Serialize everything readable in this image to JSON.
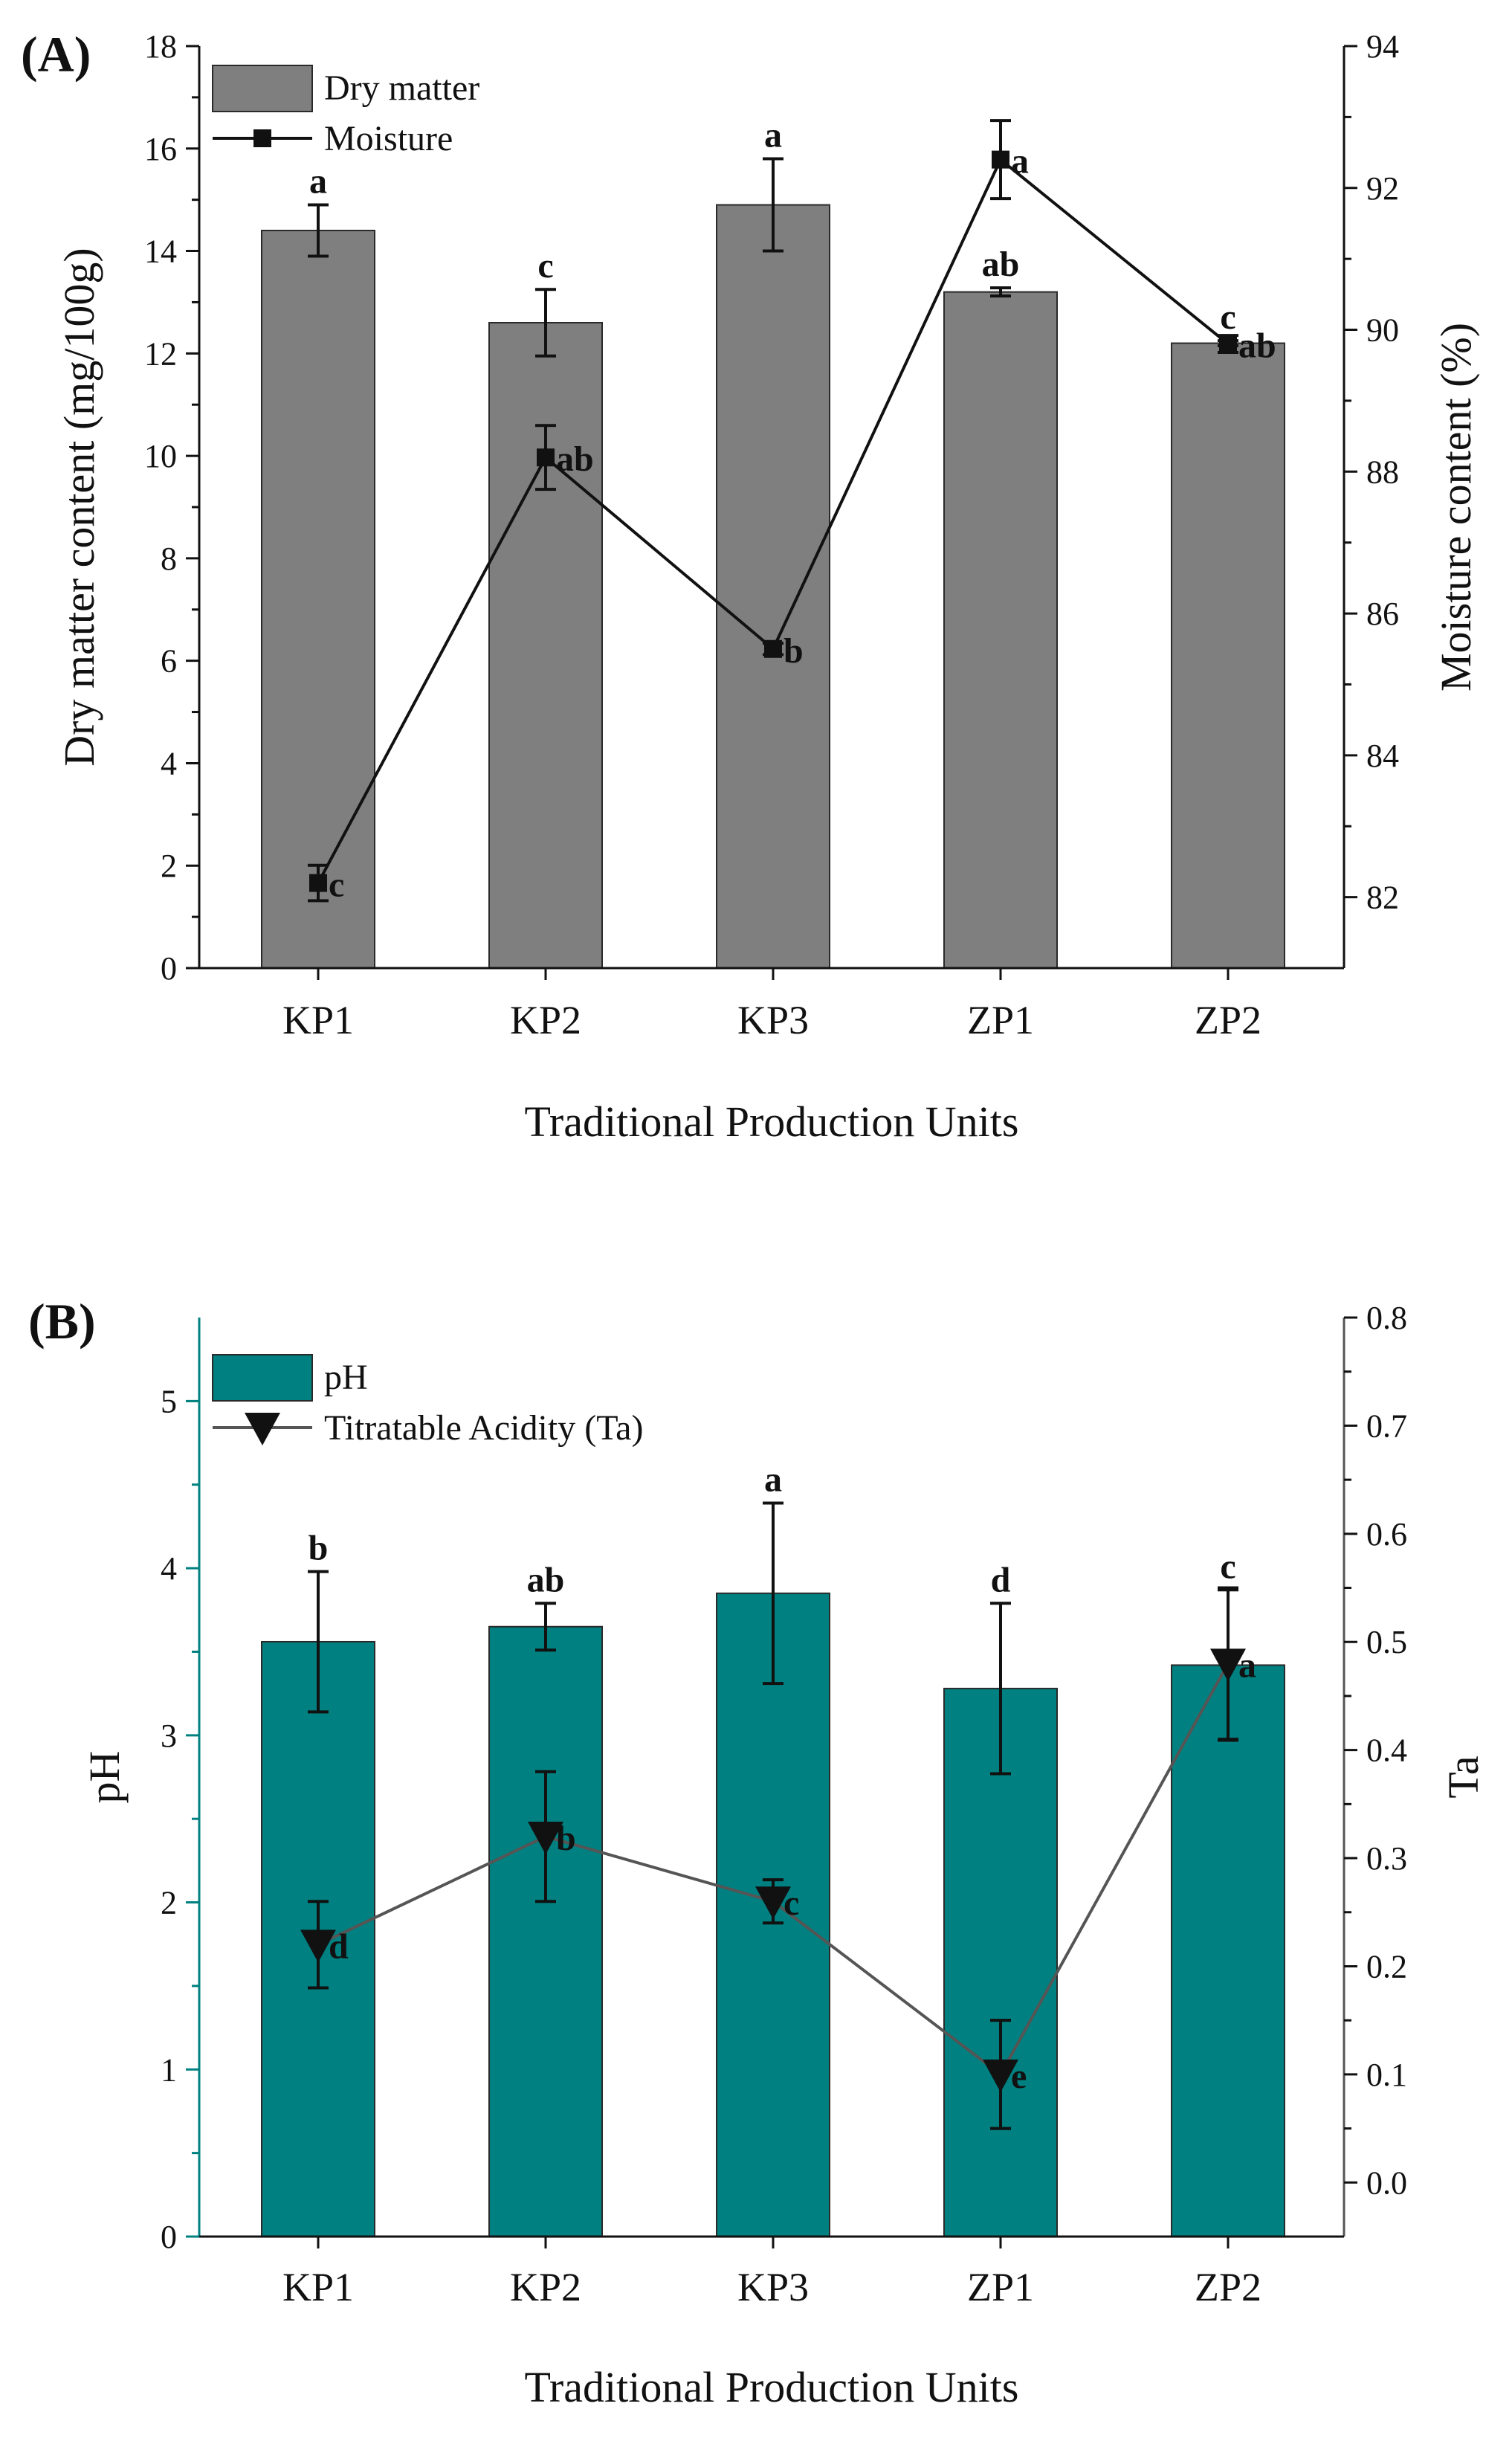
{
  "chart_data": [
    {
      "panel": "(A)",
      "type": "bar+line",
      "categories": [
        "KP1",
        "KP2",
        "KP3",
        "ZP1",
        "ZP2"
      ],
      "xlabel": "Traditional Production Units",
      "ylabel_left": "Dry matter content (mg/100g)",
      "ylabel_right": "Moisture content (%)",
      "ylim_left": [
        0,
        18
      ],
      "yticks_left": [
        "0",
        "2",
        "4",
        "6",
        "8",
        "10",
        "12",
        "14",
        "16",
        "18"
      ],
      "ylim_right": [
        81,
        94
      ],
      "yticks_right": [
        "82",
        "84",
        "86",
        "88",
        "90",
        "92",
        "94"
      ],
      "bar_color": "#7f7f7f",
      "line_color": "#111111",
      "series": [
        {
          "name": "Dry matter",
          "kind": "bar",
          "axis": "left",
          "values": [
            14.4,
            12.6,
            14.9,
            13.2,
            12.2
          ],
          "errors": [
            0.5,
            0.65,
            0.9,
            0.08,
            0.05
          ],
          "labels": [
            "a",
            "c",
            "a",
            "ab",
            "c"
          ]
        },
        {
          "name": "Moisture",
          "kind": "line",
          "marker": "square",
          "axis": "right",
          "values": [
            82.2,
            88.2,
            85.5,
            92.4,
            89.8
          ],
          "errors": [
            0.25,
            0.45,
            0.08,
            0.55,
            0.12
          ],
          "labels": [
            "c",
            "ab",
            "b",
            "a",
            "ab"
          ]
        }
      ]
    },
    {
      "panel": "(B)",
      "type": "bar+line",
      "categories": [
        "KP1",
        "KP2",
        "KP3",
        "ZP1",
        "ZP2"
      ],
      "xlabel": "Traditional Production Units",
      "ylabel_left": "pH",
      "ylabel_right": "Ta",
      "ylim_left": [
        0,
        5.5
      ],
      "yticks_left": [
        "0",
        "1",
        "2",
        "3",
        "4",
        "5"
      ],
      "ylim_right": [
        -0.05,
        0.8
      ],
      "yticks_right": [
        "0.0",
        "0.1",
        "0.2",
        "0.3",
        "0.4",
        "0.5",
        "0.6",
        "0.7",
        "0.8"
      ],
      "bar_color": "#008080",
      "line_color": "#555555",
      "series": [
        {
          "name": "pH",
          "kind": "bar",
          "axis": "left",
          "values": [
            3.56,
            3.65,
            3.85,
            3.28,
            3.42
          ],
          "errors": [
            0.42,
            0.14,
            0.54,
            0.51,
            0.45
          ],
          "labels": [
            "b",
            "ab",
            "a",
            "d",
            "c"
          ]
        },
        {
          "name": "Titratable Acidity (Ta)",
          "kind": "line",
          "marker": "triangle-down",
          "axis": "right",
          "values": [
            0.22,
            0.32,
            0.26,
            0.1,
            0.48
          ],
          "errors": [
            0.04,
            0.06,
            0.02,
            0.05,
            0.07
          ],
          "labels": [
            "d",
            "b",
            "c",
            "e",
            "a"
          ]
        }
      ]
    }
  ]
}
